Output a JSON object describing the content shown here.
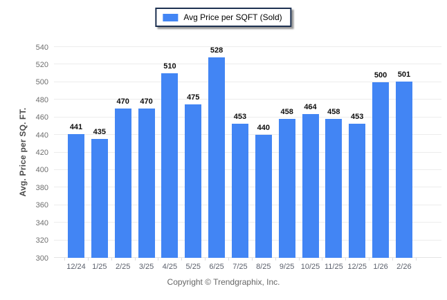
{
  "legend": {
    "label": "Avg Price per SQFT (Sold)",
    "swatch_color": "#4285F4"
  },
  "chart_data": {
    "type": "bar",
    "title": "",
    "categories": [
      "12/24",
      "1/25",
      "2/25",
      "3/25",
      "4/25",
      "5/25",
      "6/25",
      "7/25",
      "8/25",
      "9/25",
      "10/25",
      "11/25",
      "12/25",
      "1/26",
      "2/26"
    ],
    "series": [
      {
        "name": "Avg Price per SQFT (Sold)",
        "values": [
          441,
          435,
          470,
          470,
          510,
          475,
          528,
          453,
          440,
          458,
          464,
          458,
          453,
          500,
          501
        ]
      }
    ],
    "xlabel": "",
    "ylabel": "Avg. Price per SQ. FT.",
    "ylim": [
      300,
      540
    ],
    "ytick_step": 20,
    "grid": true,
    "legend_position": "top",
    "bar_color": "#4285F4",
    "value_labels_shown": true
  },
  "footer": {
    "copyright": "Copyright © Trendgraphix, Inc."
  }
}
